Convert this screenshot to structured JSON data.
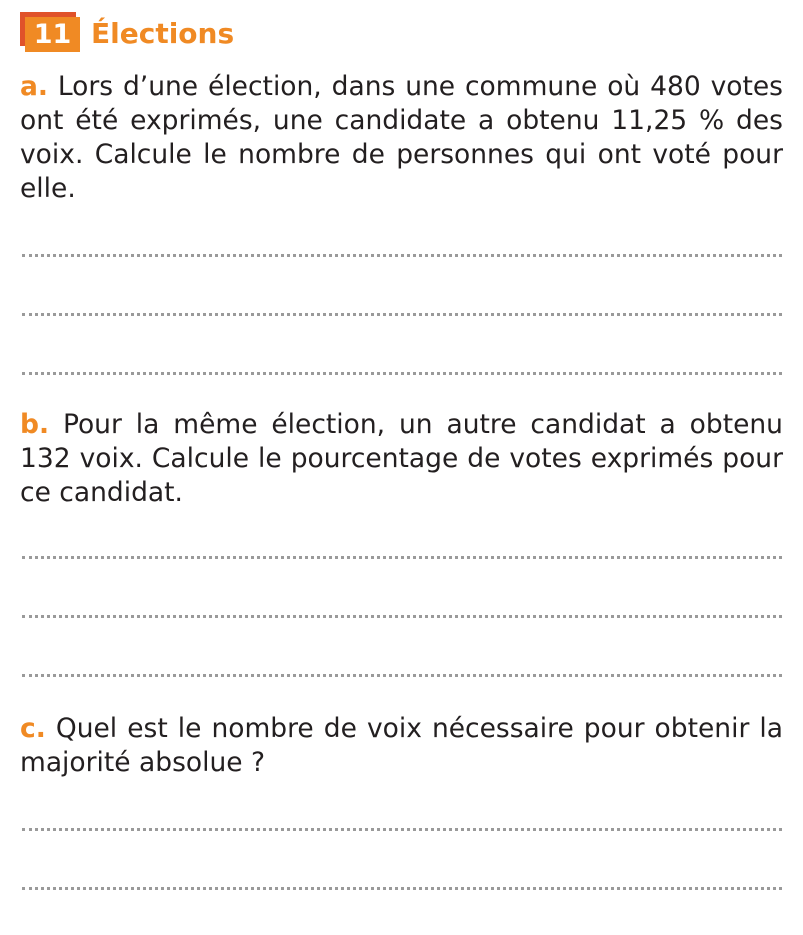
{
  "exercise": {
    "number": "11",
    "title": "Élections",
    "accent_color": "#f08a24",
    "badge_shadow_color": "#e0522a"
  },
  "questions": [
    {
      "label": "a.",
      "text": "Lors d’une élection, dans une commune où 480 votes ont été exprimés, une candidate a obtenu 11,25 % des voix. Calcule le nombre de personnes qui ont voté pour elle.",
      "answer_lines": 3
    },
    {
      "label": "b.",
      "text": "Pour la même élection, un autre candidat a obtenu 132 voix. Calcule le pourcentage de votes exprimés pour ce candidat.",
      "answer_lines": 3
    },
    {
      "label": "c.",
      "text": "Quel est le nombre de voix nécessaire pour obtenir la majorité absolue ?",
      "answer_lines": 2
    }
  ]
}
